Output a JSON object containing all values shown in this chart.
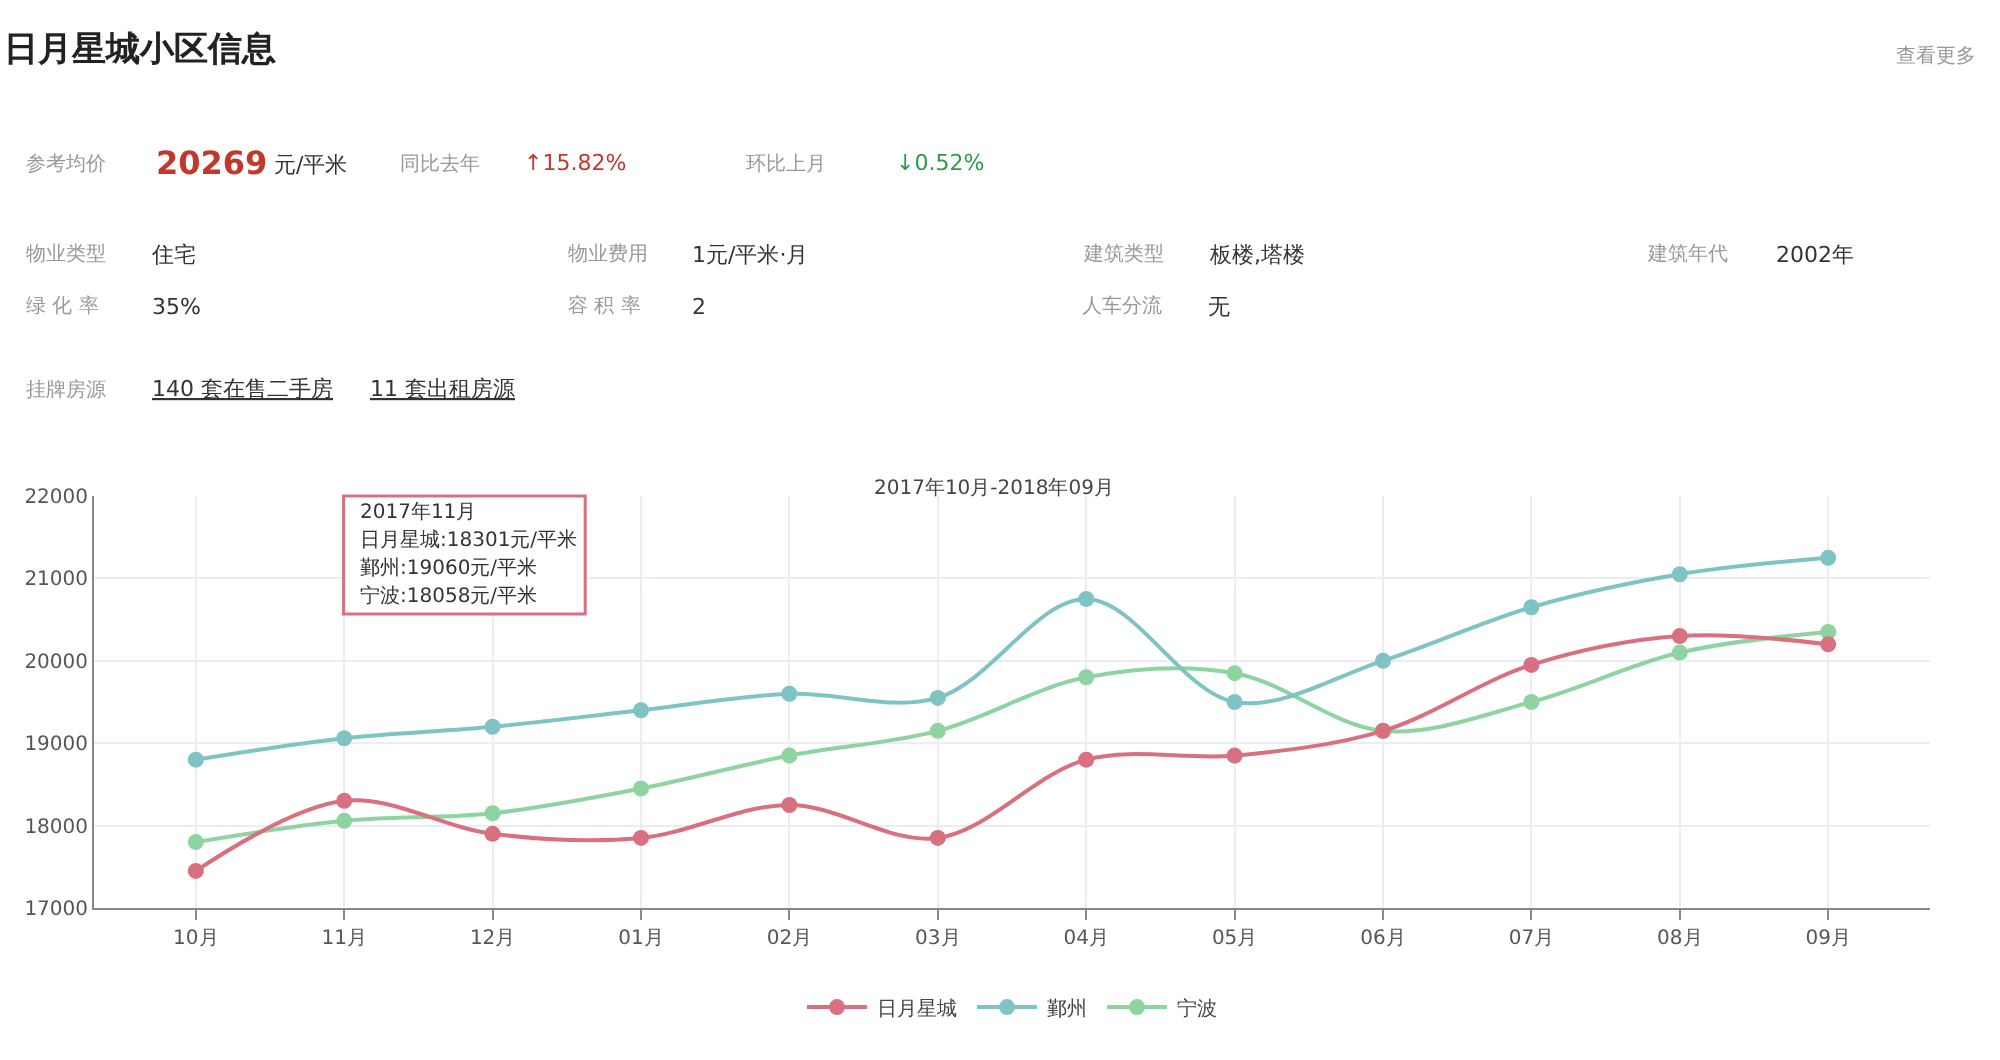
{
  "chart_data": {
    "type": "line",
    "title": "日月星城小区信息",
    "subtitle": "2017年10月-2018年09月",
    "categories": [
      "10月",
      "11月",
      "12月",
      "01月",
      "02月",
      "03月",
      "04月",
      "05月",
      "06月",
      "07月",
      "08月",
      "09月"
    ],
    "series": [
      {
        "name": "日月星城",
        "color": "#d9707f",
        "values": [
          17450,
          18301,
          17900,
          17850,
          18250,
          17850,
          18800,
          18850,
          19150,
          19950,
          20300,
          20200
        ]
      },
      {
        "name": "鄞州",
        "color": "#7fc4c4",
        "values": [
          18800,
          19060,
          19200,
          19400,
          19600,
          19550,
          20750,
          19500,
          20000,
          20650,
          21050,
          21250
        ]
      },
      {
        "name": "宁波",
        "color": "#8ed4a0",
        "values": [
          17800,
          18058,
          18150,
          18450,
          18850,
          19150,
          19800,
          19850,
          19150,
          19500,
          20100,
          20350
        ]
      }
    ],
    "ylim": [
      17000,
      22000
    ],
    "yticks": [
      17000,
      18000,
      19000,
      20000,
      21000,
      22000
    ],
    "grid": true,
    "legend": "bottom",
    "marker": "circle",
    "line_style": "solid",
    "annotations": [
      "查看更多",
      "参考均价",
      "20269",
      "元/平米",
      "同比去年",
      "↑15.82%",
      "环比上月",
      "↓0.52%",
      "物业类型",
      "住宅",
      "物业费用",
      "1元/平米·月",
      "建筑类型",
      "板楼,塔楼",
      "建筑年代",
      "2002年",
      "绿 化 率",
      "35%",
      "容 积 率",
      "2",
      "人车分流",
      "无",
      "挂牌房源",
      "140 套在售二手房",
      "11 套出租房源",
      "2017年11月",
      "日月星城:18301元/平米",
      "鄞州:19060元/平米",
      "宁波:18058元/平米"
    ]
  }
}
